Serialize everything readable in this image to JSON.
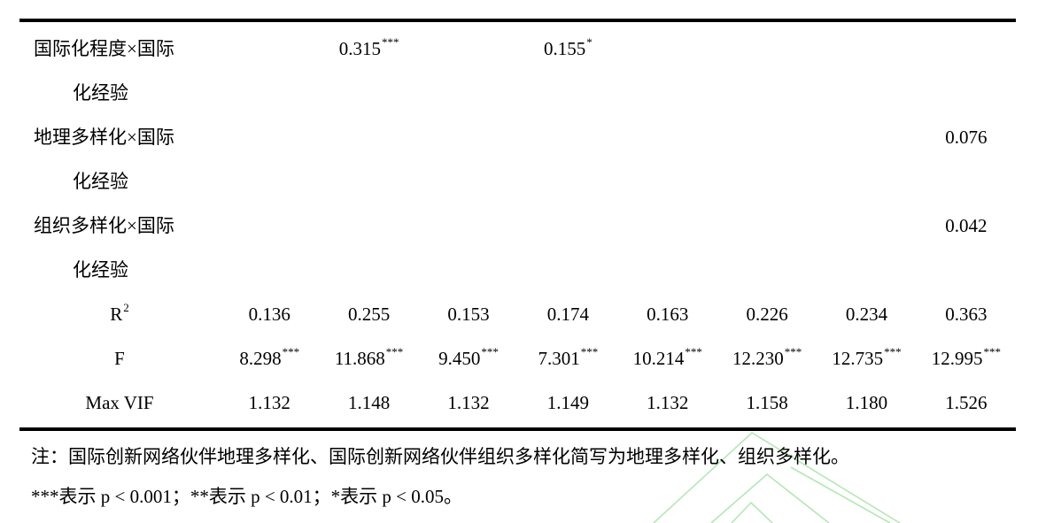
{
  "colors": {
    "text": "#000000",
    "rule": "#000000",
    "watermark_green": "#b4e7b4",
    "background": "#ffffff"
  },
  "table": {
    "columns": 8,
    "rows": [
      {
        "label": {
          "t": "国际化程度×国际",
          "s": ""
        },
        "align": "left",
        "cells": [
          null,
          {
            "v": "0.315",
            "s": "***"
          },
          null,
          {
            "v": "0.155",
            "s": "*"
          },
          null,
          null,
          null,
          null
        ]
      },
      {
        "label": {
          "t": "化经验",
          "s": ""
        },
        "align": "indent",
        "cells": [
          null,
          null,
          null,
          null,
          null,
          null,
          null,
          null
        ]
      },
      {
        "label": {
          "t": "地理多样化×国际",
          "s": ""
        },
        "align": "left",
        "cells": [
          null,
          null,
          null,
          null,
          null,
          null,
          null,
          {
            "v": "0.076",
            "s": ""
          }
        ]
      },
      {
        "label": {
          "t": "化经验",
          "s": ""
        },
        "align": "indent",
        "cells": [
          null,
          null,
          null,
          null,
          null,
          null,
          null,
          null
        ]
      },
      {
        "label": {
          "t": "组织多样化×国际",
          "s": ""
        },
        "align": "left",
        "cells": [
          null,
          null,
          null,
          null,
          null,
          null,
          null,
          {
            "v": "0.042",
            "s": ""
          }
        ]
      },
      {
        "label": {
          "t": "化经验",
          "s": ""
        },
        "align": "indent",
        "cells": [
          null,
          null,
          null,
          null,
          null,
          null,
          null,
          null
        ]
      },
      {
        "label": {
          "t": "R",
          "s": "2"
        },
        "align": "center",
        "cells": [
          {
            "v": "0.136",
            "s": ""
          },
          {
            "v": "0.255",
            "s": ""
          },
          {
            "v": "0.153",
            "s": ""
          },
          {
            "v": "0.174",
            "s": ""
          },
          {
            "v": "0.163",
            "s": ""
          },
          {
            "v": "0.226",
            "s": ""
          },
          {
            "v": "0.234",
            "s": ""
          },
          {
            "v": "0.363",
            "s": ""
          }
        ]
      },
      {
        "label": {
          "t": "F",
          "s": ""
        },
        "align": "center",
        "cells": [
          {
            "v": "8.298",
            "s": "***"
          },
          {
            "v": "11.868",
            "s": "***"
          },
          {
            "v": "9.450",
            "s": "***"
          },
          {
            "v": "7.301",
            "s": "***"
          },
          {
            "v": "10.214",
            "s": "***"
          },
          {
            "v": "12.230",
            "s": "***"
          },
          {
            "v": "12.735",
            "s": "***"
          },
          {
            "v": "12.995",
            "s": "***"
          }
        ]
      },
      {
        "label": {
          "t": "Max VIF",
          "s": ""
        },
        "align": "center",
        "cells": [
          {
            "v": "1.132",
            "s": ""
          },
          {
            "v": "1.148",
            "s": ""
          },
          {
            "v": "1.132",
            "s": ""
          },
          {
            "v": "1.149",
            "s": ""
          },
          {
            "v": "1.132",
            "s": ""
          },
          {
            "v": "1.158",
            "s": ""
          },
          {
            "v": "1.180",
            "s": ""
          },
          {
            "v": "1.526",
            "s": ""
          }
        ]
      }
    ]
  },
  "notes": [
    "注：国际创新网络伙伴地理多样化、国际创新网络伙伴组织多样化简写为地理多样化、组织多样化。",
    "***表示 p < 0.001；**表示 p < 0.01；*表示 p < 0.05。"
  ],
  "watermark": {
    "name": "nested-chevron-watermark",
    "color": "#b4e7b4"
  }
}
